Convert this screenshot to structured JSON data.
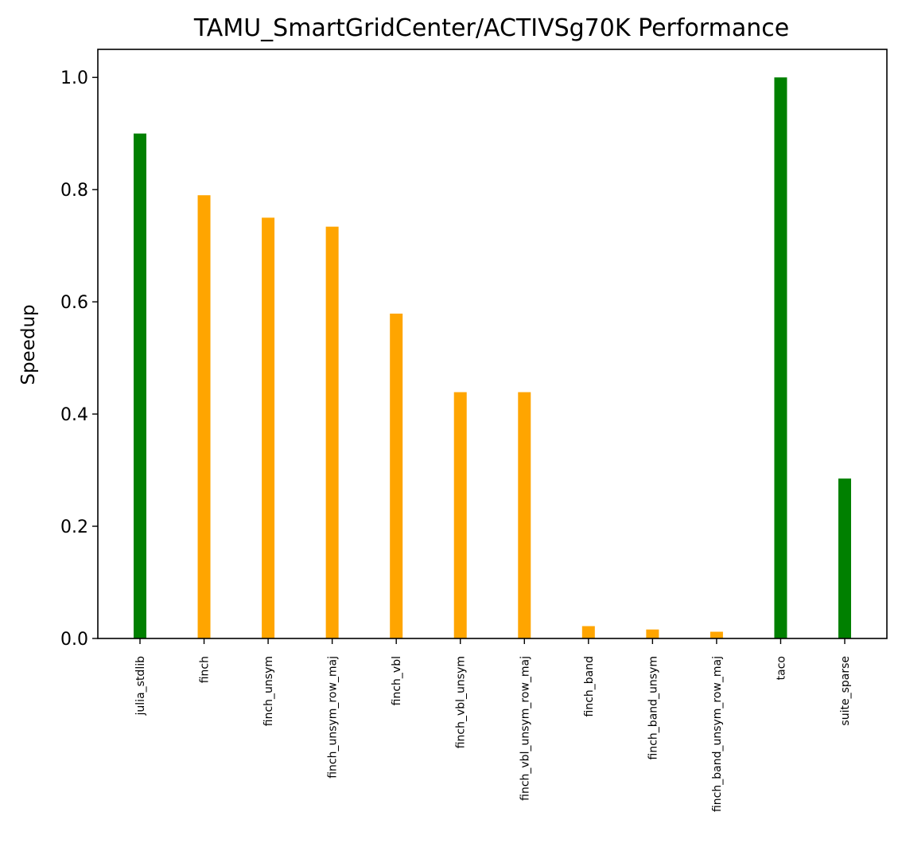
{
  "chart_data": {
    "type": "bar",
    "title": "TAMU_SmartGridCenter/ACTIVSg70K Performance",
    "xlabel": "",
    "ylabel": "Speedup",
    "ylim": [
      0,
      1.05
    ],
    "yticks": [
      "0.0",
      "0.2",
      "0.4",
      "0.6",
      "0.8",
      "1.0"
    ],
    "grid": false,
    "categories": [
      "julia_stdlib",
      "finch",
      "finch_unsym",
      "finch_unsym_row_maj",
      "finch_vbl",
      "finch_vbl_unsym",
      "finch_vbl_unsym_row_maj",
      "finch_band",
      "finch_band_unsym",
      "finch_band_unsym_row_maj",
      "taco",
      "suite_sparse"
    ],
    "values": [
      0.9,
      0.79,
      0.75,
      0.734,
      0.579,
      0.439,
      0.439,
      0.022,
      0.016,
      0.012,
      1.0,
      0.285
    ],
    "colors": [
      "#008000",
      "#FFA500",
      "#FFA500",
      "#FFA500",
      "#FFA500",
      "#FFA500",
      "#FFA500",
      "#FFA500",
      "#FFA500",
      "#FFA500",
      "#008000",
      "#008000"
    ]
  }
}
